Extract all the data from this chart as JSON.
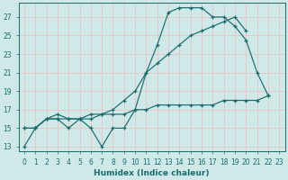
{
  "line_peaked_x": [
    0,
    1,
    2,
    3,
    4,
    5,
    6,
    7,
    8,
    9,
    10,
    11,
    12,
    13,
    14,
    15,
    16,
    17,
    18,
    19,
    20,
    21,
    22
  ],
  "line_peaked_y": [
    13,
    15,
    16,
    16,
    15,
    16,
    15,
    13,
    15,
    15,
    17,
    21,
    24,
    27.5,
    28,
    28,
    28,
    27,
    27,
    26,
    24.5,
    21,
    18.5
  ],
  "line_diag_x": [
    0,
    1,
    2,
    3,
    4,
    5,
    6,
    7,
    8,
    9,
    10,
    11,
    12,
    13,
    14,
    15,
    16,
    17,
    18,
    19,
    20
  ],
  "line_diag_y": [
    15,
    15,
    16,
    16.5,
    16,
    16,
    16,
    16.5,
    17,
    18,
    19,
    21,
    22,
    23,
    24,
    25,
    25.5,
    26,
    26.5,
    27,
    25.5
  ],
  "line_flat_x": [
    0,
    1,
    2,
    3,
    4,
    5,
    6,
    7,
    8,
    9,
    10,
    11,
    12,
    13,
    14,
    15,
    16,
    17,
    18,
    19,
    20,
    21,
    22
  ],
  "line_flat_y": [
    15,
    15,
    16,
    16,
    16,
    16,
    16.5,
    16.5,
    16.5,
    16.5,
    17,
    17,
    17.5,
    17.5,
    17.5,
    17.5,
    17.5,
    17.5,
    18,
    18,
    18,
    18,
    18.5
  ],
  "bg_color": "#cfe8e8",
  "line_color": "#1a6b6b",
  "grid_color": "#e8c8c8",
  "xlabel": "Humidex (Indice chaleur)",
  "yticks": [
    13,
    15,
    17,
    19,
    21,
    23,
    25,
    27
  ],
  "xlim": [
    -0.5,
    23.5
  ],
  "ylim": [
    12.5,
    28.5
  ]
}
